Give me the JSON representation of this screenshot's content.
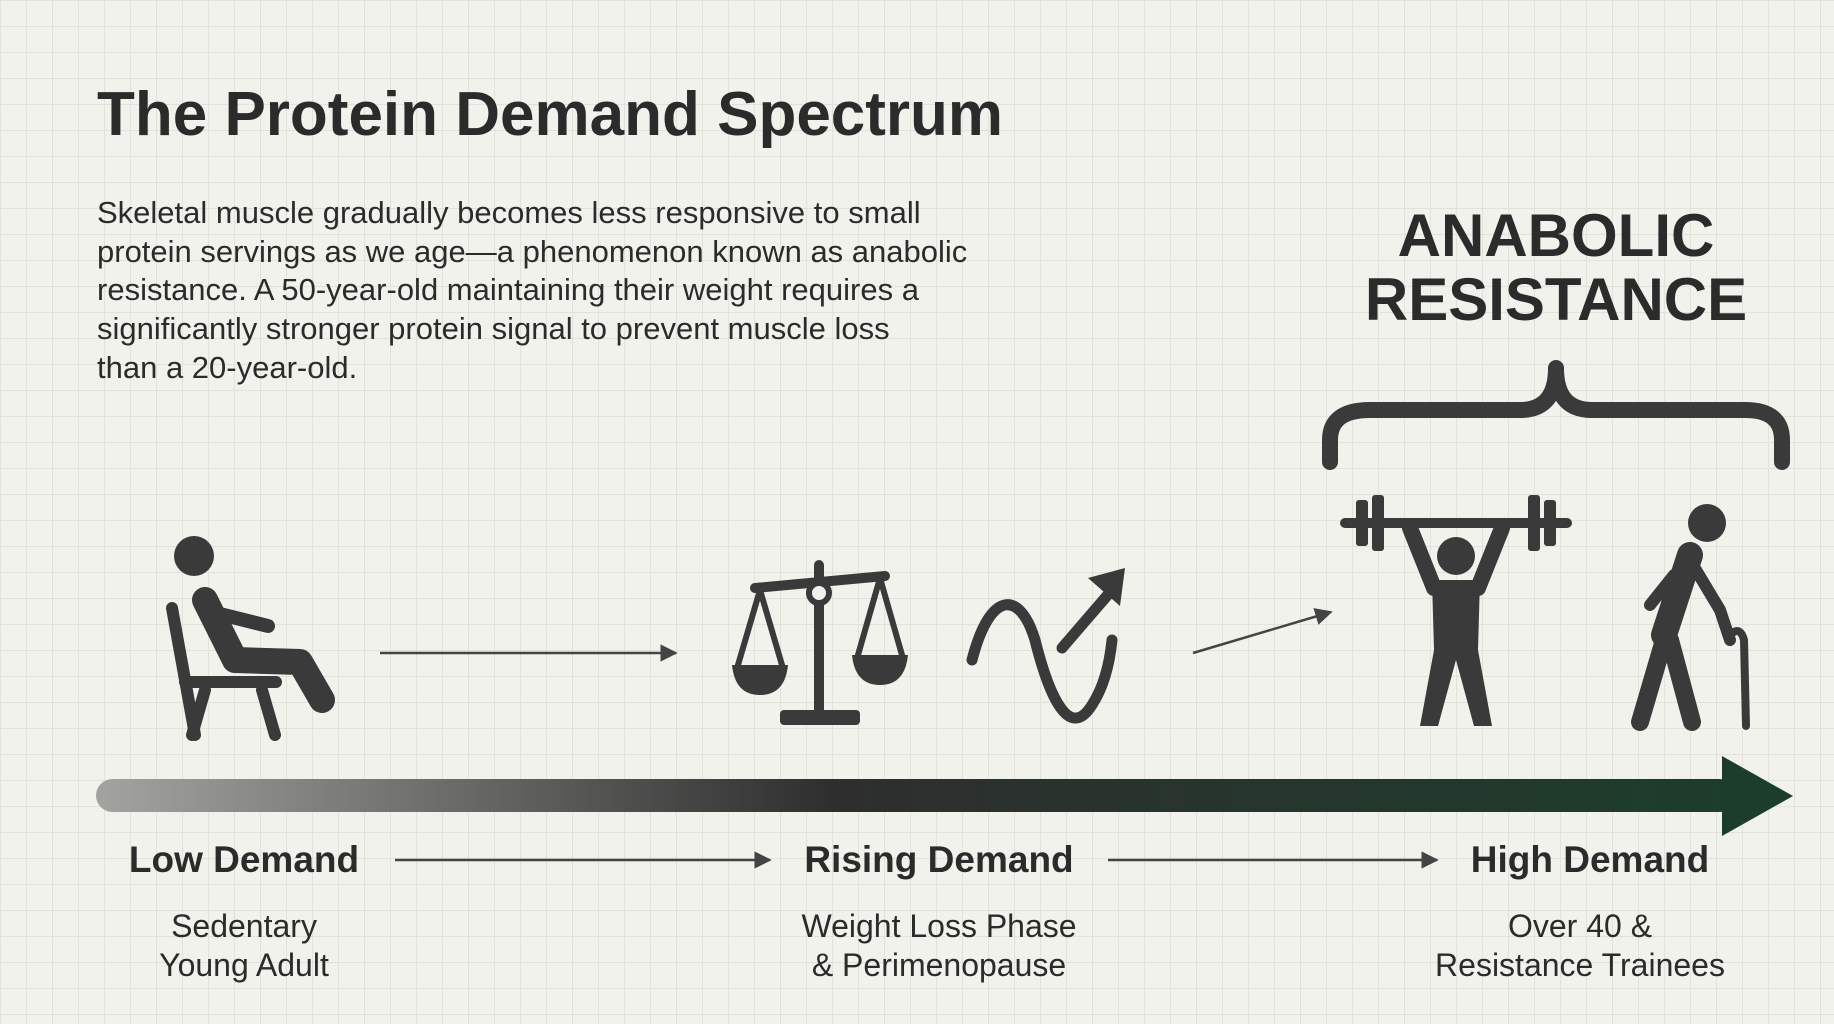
{
  "header": {
    "title": "The Protein Demand Spectrum",
    "description": [
      "Skeletal muscle gradually becomes less responsive to small",
      "protein servings as we age—a phenomenon known as anabolic",
      "resistance. A 50-year-old maintaining their weight requires a",
      "significantly stronger protein signal to prevent muscle loss",
      "than a 20-year-old."
    ]
  },
  "callout": {
    "title": [
      "ANABOLIC",
      "RESISTANCE"
    ]
  },
  "stages": [
    {
      "label": "Low Demand",
      "description": [
        "Sedentary",
        "Young Adult"
      ]
    },
    {
      "label": "Rising Demand",
      "description": [
        "Weight Loss Phase",
        "& Perimenopause"
      ]
    },
    {
      "label": "High Demand",
      "description": [
        "Over 40 &",
        "Resistance Trainees"
      ]
    }
  ]
}
